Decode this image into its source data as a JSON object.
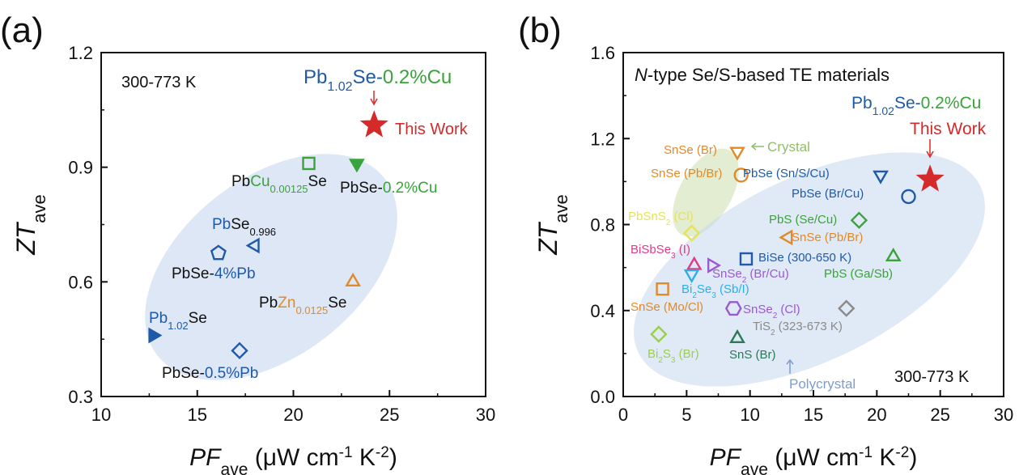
{
  "chart_data": [
    {
      "panel_label": "(a)",
      "type": "scatter",
      "xlabel": {
        "main": "PF",
        "sub": "ave",
        "unit_pre": " (μW cm",
        "exp1": "-1",
        "unit_mid": " K",
        "exp2": "-2",
        "unit_post": ")"
      },
      "ylabel": {
        "main": "ZT",
        "sub": "ave"
      },
      "xlim": [
        10,
        30
      ],
      "ylim": [
        0.3,
        1.2
      ],
      "xticks": [
        "10",
        "15",
        "20",
        "25",
        "30"
      ],
      "yticks": [
        "0.3",
        "0.6",
        "0.9",
        "1.2"
      ],
      "annotation": "300-773 K",
      "highlight": {
        "parts": [
          {
            "text": "Pb",
            "color": "#1f5aa8"
          },
          {
            "text": "1.02",
            "color": "#1f5aa8",
            "sub": true
          },
          {
            "text": "Se-",
            "color": "#1f5aa8"
          },
          {
            "text": "0.2%Cu",
            "color": "#3aa33a"
          }
        ],
        "note": "This Work",
        "note_color": "#d42a2a"
      },
      "points": [
        {
          "x": 24.2,
          "y": 1.01,
          "marker": "star",
          "color": "#d42a2a",
          "filled": true,
          "label": [
            {
              "text": "This Work",
              "color": "#d42a2a"
            }
          ]
        },
        {
          "x": 20.8,
          "y": 0.91,
          "marker": "square",
          "color": "#3aa33a",
          "filled": false,
          "label": [
            {
              "text": "Pb",
              "color": "#111111"
            },
            {
              "text": "Cu",
              "color": "#3aa33a"
            },
            {
              "text": "0.00125",
              "color": "#3aa33a",
              "sub": true
            },
            {
              "text": "Se",
              "color": "#111111"
            }
          ]
        },
        {
          "x": 23.3,
          "y": 0.91,
          "marker": "triangle-down",
          "color": "#3aa33a",
          "filled": true,
          "label": [
            {
              "text": "PbSe-",
              "color": "#111111"
            },
            {
              "text": "0.2%Cu",
              "color": "#3aa33a"
            }
          ]
        },
        {
          "x": 18.0,
          "y": 0.695,
          "marker": "triangle-left",
          "color": "#1f5aa8",
          "filled": false,
          "label": [
            {
              "text": "Pb",
              "color": "#1f5aa8"
            },
            {
              "text": "Se",
              "color": "#111111"
            },
            {
              "text": "0.996",
              "color": "#111111",
              "sub": true
            }
          ]
        },
        {
          "x": 16.1,
          "y": 0.675,
          "marker": "pentagon",
          "color": "#1f5aa8",
          "filled": false,
          "label": [
            {
              "text": "PbSe-",
              "color": "#111111"
            },
            {
              "text": "4%Pb",
              "color": "#1f5aa8"
            }
          ]
        },
        {
          "x": 23.1,
          "y": 0.6,
          "marker": "triangle-up",
          "color": "#e08a2a",
          "filled": false,
          "label": [
            {
              "text": "Pb",
              "color": "#111111"
            },
            {
              "text": "Zn",
              "color": "#e08a2a"
            },
            {
              "text": "0.0125",
              "color": "#e08a2a",
              "sub": true
            },
            {
              "text": "Se",
              "color": "#111111"
            }
          ]
        },
        {
          "x": 12.7,
          "y": 0.46,
          "marker": "triangle-right",
          "color": "#1f5aa8",
          "filled": true,
          "label": [
            {
              "text": "Pb",
              "color": "#1f5aa8"
            },
            {
              "text": "1.02",
              "color": "#1f5aa8",
              "sub": true
            },
            {
              "text": "Se",
              "color": "#111111"
            }
          ]
        },
        {
          "x": 17.2,
          "y": 0.42,
          "marker": "diamond",
          "color": "#1f5aa8",
          "filled": false,
          "label": [
            {
              "text": "PbSe-",
              "color": "#111111"
            },
            {
              "text": "0.5%Pb",
              "color": "#1f5aa8"
            }
          ]
        }
      ],
      "regions": [
        {
          "name": "all-region",
          "color": "#c6d7ee",
          "label": ""
        }
      ]
    },
    {
      "panel_label": "(b)",
      "type": "scatter",
      "xlabel": {
        "main": "PF",
        "sub": "ave",
        "unit_pre": " (μW cm",
        "exp1": "-1",
        "unit_mid": " K",
        "exp2": "-2",
        "unit_post": ")"
      },
      "ylabel": {
        "main": "ZT",
        "sub": "ave"
      },
      "xlim": [
        0,
        30
      ],
      "ylim": [
        0.0,
        1.6
      ],
      "xticks": [
        "0",
        "5",
        "10",
        "15",
        "20",
        "25",
        "30"
      ],
      "yticks": [
        "0.0",
        "0.4",
        "0.8",
        "1.2",
        "1.6"
      ],
      "title": {
        "italic": "N",
        "rest": "-type Se/S-based TE materials"
      },
      "annotation": "300-773 K",
      "highlight": {
        "parts": [
          {
            "text": "Pb",
            "color": "#1f5aa8"
          },
          {
            "text": "1.02",
            "color": "#1f5aa8",
            "sub": true
          },
          {
            "text": "Se-",
            "color": "#1f5aa8"
          },
          {
            "text": "0.2%Cu",
            "color": "#3aa33a"
          }
        ],
        "note": "This Work",
        "note_color": "#d42a2a"
      },
      "regions": [
        {
          "name": "crystal-region",
          "color": "#dbe9c5",
          "label": "Crystal",
          "label_color": "#8fbf6a"
        },
        {
          "name": "polycrystal-region",
          "color": "#c6d7ee",
          "label": "Polycrystal",
          "label_color": "#7a9ed0"
        }
      ],
      "points": [
        {
          "x": 24.2,
          "y": 1.01,
          "marker": "star",
          "color": "#d42a2a",
          "filled": true,
          "label": []
        },
        {
          "x": 9.0,
          "y": 1.14,
          "marker": "triangle-down",
          "color": "#e08a2a",
          "filled": false,
          "label": [
            {
              "text": "SnSe (Br)",
              "color": "#e08a2a"
            }
          ]
        },
        {
          "x": 9.3,
          "y": 1.03,
          "marker": "circle",
          "color": "#e08a2a",
          "filled": false,
          "label": [
            {
              "text": "SnSe (Pb/Br)",
              "color": "#e08a2a"
            }
          ]
        },
        {
          "x": 20.3,
          "y": 1.03,
          "marker": "triangle-down",
          "color": "#1f5aa8",
          "filled": false,
          "label": [
            {
              "text": "PbSe (Sn/S/Cu)",
              "color": "#1f5aa8"
            }
          ]
        },
        {
          "x": 22.5,
          "y": 0.93,
          "marker": "circle",
          "color": "#1f5aa8",
          "filled": false,
          "label": [
            {
              "text": "PbSe (Br/Cu)",
              "color": "#1f5aa8"
            }
          ]
        },
        {
          "x": 5.4,
          "y": 0.76,
          "marker": "diamond",
          "color": "#e6e25a",
          "filled": false,
          "label": [
            {
              "text": "PbSnS",
              "color": "#e6e25a"
            },
            {
              "text": "2",
              "color": "#e6e25a",
              "sub": true
            },
            {
              "text": " (Cl)",
              "color": "#e6e25a"
            }
          ]
        },
        {
          "x": 18.6,
          "y": 0.82,
          "marker": "diamond",
          "color": "#3aa33a",
          "filled": false,
          "label": [
            {
              "text": "PbS (Se/Cu)",
              "color": "#3aa33a"
            }
          ]
        },
        {
          "x": 13.0,
          "y": 0.74,
          "marker": "triangle-left",
          "color": "#e08a2a",
          "filled": false,
          "label": [
            {
              "text": "SnSe (Pb/Br)",
              "color": "#e08a2a"
            }
          ]
        },
        {
          "x": 5.6,
          "y": 0.61,
          "marker": "triangle-up",
          "color": "#e03a8a",
          "filled": false,
          "label": [
            {
              "text": "BiSbSe",
              "color": "#e03a8a"
            },
            {
              "text": "3",
              "color": "#e03a8a",
              "sub": true
            },
            {
              "text": " (I)",
              "color": "#e03a8a"
            }
          ]
        },
        {
          "x": 7.0,
          "y": 0.61,
          "marker": "triangle-right",
          "color": "#9a5ad0",
          "filled": false,
          "label": [
            {
              "text": "SnSe",
              "color": "#9a5ad0"
            },
            {
              "text": "2",
              "color": "#9a5ad0",
              "sub": true
            },
            {
              "text": " (Br/Cu)",
              "color": "#9a5ad0"
            }
          ]
        },
        {
          "x": 9.7,
          "y": 0.64,
          "marker": "square",
          "color": "#1f5aa8",
          "filled": false,
          "label": [
            {
              "text": "BiSe (300-650 K)",
              "color": "#1f5aa8"
            }
          ]
        },
        {
          "x": 21.3,
          "y": 0.65,
          "marker": "triangle-up",
          "color": "#3aa33a",
          "filled": false,
          "label": [
            {
              "text": "PbS (Ga/Sb)",
              "color": "#3aa33a"
            }
          ]
        },
        {
          "x": 5.4,
          "y": 0.57,
          "marker": "triangle-down",
          "color": "#2ab0e8",
          "filled": false,
          "label": [
            {
              "text": "Bi",
              "color": "#2ab0e8"
            },
            {
              "text": "2",
              "color": "#2ab0e8",
              "sub": true
            },
            {
              "text": "Se",
              "color": "#2ab0e8"
            },
            {
              "text": "3",
              "color": "#2ab0e8",
              "sub": true
            },
            {
              "text": " (Sb/I)",
              "color": "#2ab0e8"
            }
          ]
        },
        {
          "x": 3.1,
          "y": 0.5,
          "marker": "square",
          "color": "#e08a2a",
          "filled": false,
          "label": [
            {
              "text": "SnSe (Mo/Cl)",
              "color": "#e08a2a"
            }
          ]
        },
        {
          "x": 8.7,
          "y": 0.41,
          "marker": "hexagon",
          "color": "#9a5ad0",
          "filled": false,
          "label": [
            {
              "text": "SnSe",
              "color": "#9a5ad0"
            },
            {
              "text": "2",
              "color": "#9a5ad0",
              "sub": true
            },
            {
              "text": " (Cl)",
              "color": "#9a5ad0"
            }
          ]
        },
        {
          "x": 17.6,
          "y": 0.41,
          "marker": "diamond",
          "color": "#8a8a8a",
          "filled": false,
          "label": [
            {
              "text": "TiS",
              "color": "#8a8a8a"
            },
            {
              "text": "2",
              "color": "#8a8a8a",
              "sub": true
            },
            {
              "text": " (323-673 K)",
              "color": "#8a8a8a"
            }
          ]
        },
        {
          "x": 2.8,
          "y": 0.29,
          "marker": "diamond",
          "color": "#9ad04a",
          "filled": false,
          "label": [
            {
              "text": "Bi",
              "color": "#9ad04a"
            },
            {
              "text": "2",
              "color": "#9ad04a",
              "sub": true
            },
            {
              "text": "S",
              "color": "#9ad04a"
            },
            {
              "text": "3",
              "color": "#9ad04a",
              "sub": true
            },
            {
              "text": " (Br)",
              "color": "#9ad04a"
            }
          ]
        },
        {
          "x": 9.0,
          "y": 0.27,
          "marker": "triangle-up",
          "color": "#2a7a5a",
          "filled": false,
          "label": [
            {
              "text": "SnS (Br)",
              "color": "#2a7a5a"
            }
          ]
        }
      ]
    }
  ]
}
